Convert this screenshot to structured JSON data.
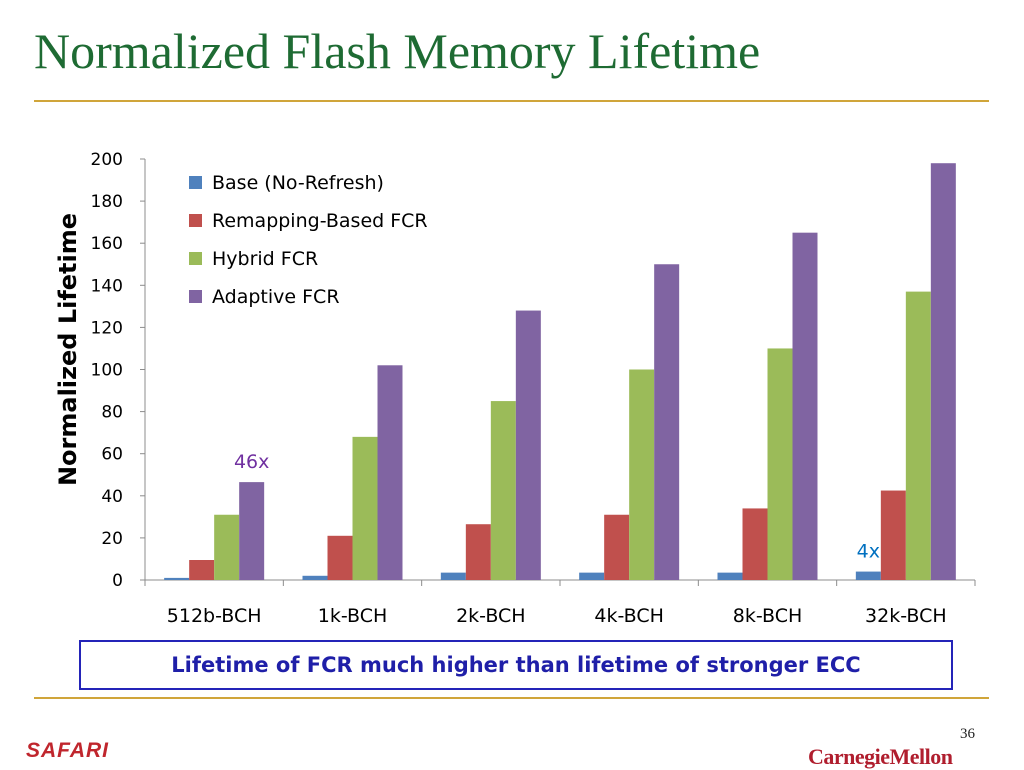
{
  "slide": {
    "title": "Normalized Flash Memory Lifetime",
    "callout": "Lifetime of FCR much higher than lifetime of stronger ECC",
    "page_number": "36",
    "logo_left": "SAFARI",
    "logo_right": "CarnegieMellon"
  },
  "colors": {
    "title": "#1e6b33",
    "rule": "#d0a53a",
    "callout_border": "#2424b8",
    "callout_text": "#1f1fa8"
  },
  "chart_data": {
    "type": "bar",
    "ylabel": "Normalized Lifetime",
    "xlabel": "",
    "ylim": [
      0,
      200
    ],
    "yticks": [
      0,
      20,
      40,
      60,
      80,
      100,
      120,
      140,
      160,
      180,
      200
    ],
    "grid": false,
    "legend_position": "top-left",
    "categories": [
      "512b-BCH",
      "1k-BCH",
      "2k-BCH",
      "4k-BCH",
      "8k-BCH",
      "32k-BCH"
    ],
    "series": [
      {
        "name": "Base (No-Refresh)",
        "color": "#4f81bd",
        "values": [
          1,
          2,
          3.5,
          3.5,
          3.5,
          4
        ]
      },
      {
        "name": "Remapping-Based FCR",
        "color": "#c0504d",
        "values": [
          9.5,
          21,
          26.5,
          31,
          34,
          42.5
        ]
      },
      {
        "name": "Hybrid FCR",
        "color": "#9bbb59",
        "values": [
          31,
          68,
          85,
          100,
          110,
          137
        ]
      },
      {
        "name": "Adaptive FCR",
        "color": "#8064a2",
        "values": [
          46.5,
          102,
          128,
          150,
          165,
          198
        ]
      }
    ],
    "annotations": [
      {
        "text": "46x",
        "category": "512b-BCH",
        "series": "Adaptive FCR",
        "color": "#7030a0"
      },
      {
        "text": "4x",
        "category": "32k-BCH",
        "series": "Base (No-Refresh)",
        "color": "#0070c0"
      }
    ]
  }
}
